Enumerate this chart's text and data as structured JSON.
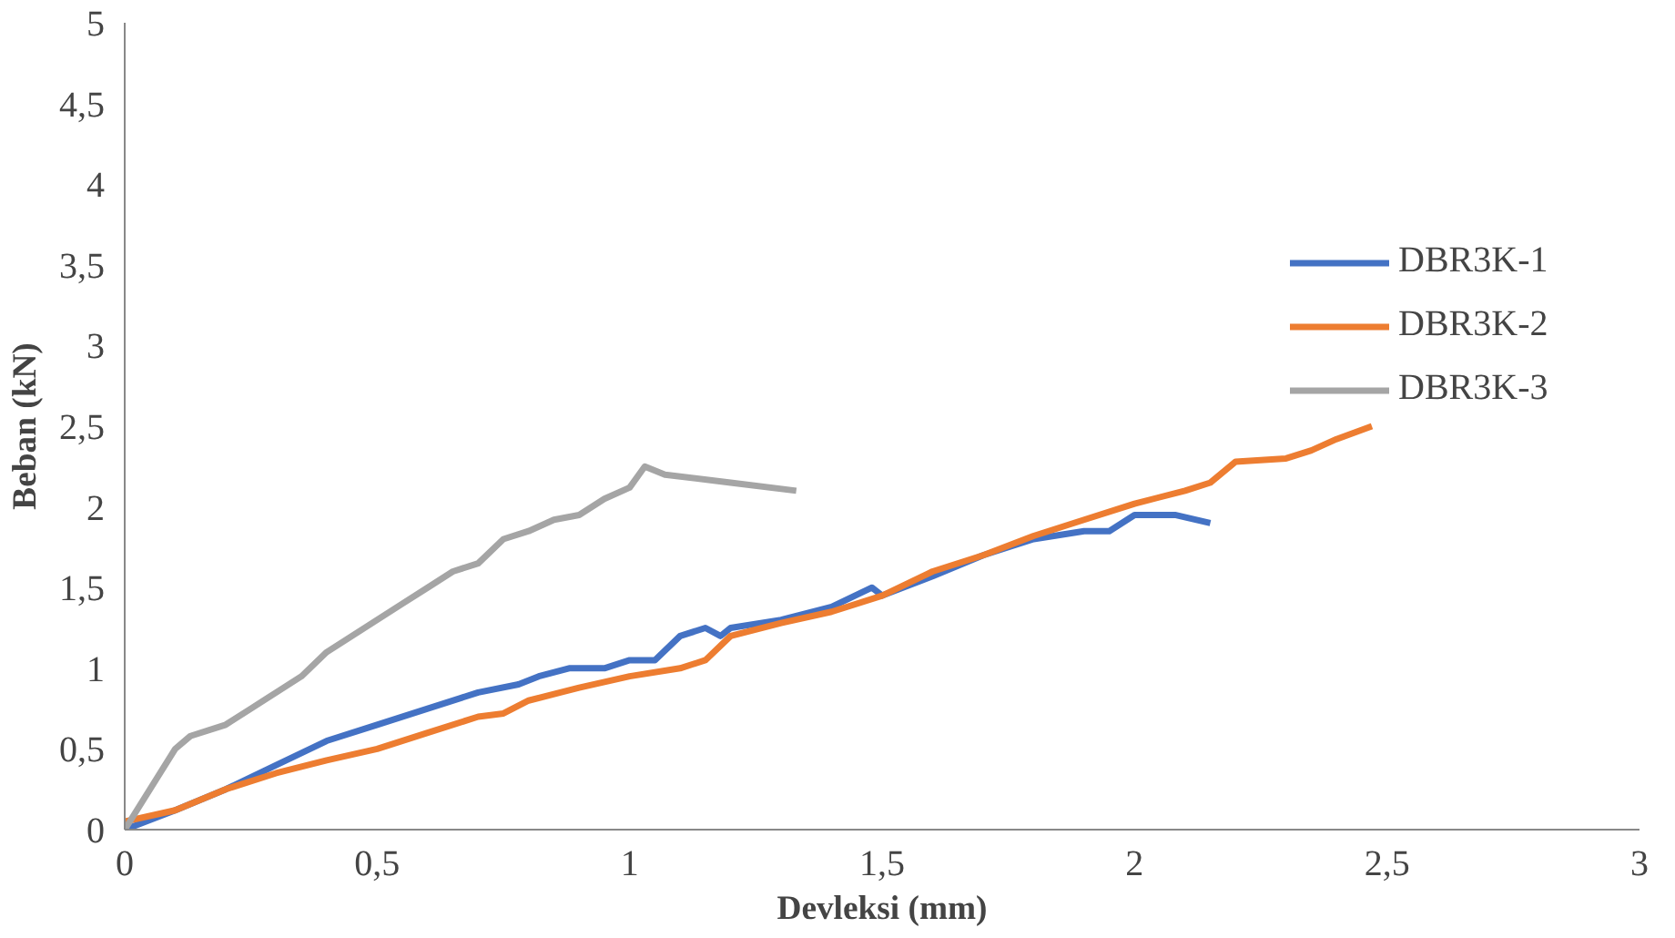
{
  "chart_data": {
    "type": "line",
    "xlabel": "Devleksi (mm)",
    "ylabel": "Beban (kN)",
    "xlim": [
      0,
      3
    ],
    "xticks": [
      0,
      {
        "value": 0.5,
        "label": "0,5"
      },
      1,
      {
        "value": 1.5,
        "label": "1,5"
      },
      2,
      {
        "value": 2.5,
        "label": "2,5"
      },
      3
    ],
    "ylim": [
      0,
      5
    ],
    "yticks": [
      0,
      {
        "value": 0.5,
        "label": "0,5"
      },
      1,
      {
        "value": 1.5,
        "label": "1,5"
      },
      2,
      {
        "value": 2.5,
        "label": "2,5"
      },
      3,
      {
        "value": 3.5,
        "label": "3,5"
      },
      4,
      {
        "value": 4.5,
        "label": "4,5"
      },
      5
    ],
    "grid": false,
    "legend": "right",
    "marker": "none",
    "line_style": "solid",
    "series": [
      {
        "name": "DBR3K-1",
        "color": "#4472c4",
        "x": [
          0,
          0.1,
          0.2,
          0.3,
          0.4,
          0.5,
          0.6,
          0.7,
          0.78,
          0.82,
          0.88,
          0.95,
          1.0,
          1.05,
          1.1,
          1.15,
          1.18,
          1.2,
          1.3,
          1.4,
          1.48,
          1.5,
          1.6,
          1.7,
          1.8,
          1.9,
          1.95,
          2.0,
          2.08,
          2.15
        ],
        "values": [
          0,
          0.12,
          0.25,
          0.4,
          0.55,
          0.65,
          0.75,
          0.85,
          0.9,
          0.95,
          1.0,
          1.0,
          1.05,
          1.05,
          1.2,
          1.25,
          1.2,
          1.25,
          1.3,
          1.38,
          1.5,
          1.45,
          1.57,
          1.7,
          1.8,
          1.85,
          1.85,
          1.95,
          1.95,
          1.9
        ]
      },
      {
        "name": "DBR3K-2",
        "color": "#ed7d31",
        "x": [
          0,
          0.1,
          0.2,
          0.3,
          0.4,
          0.5,
          0.6,
          0.7,
          0.75,
          0.8,
          0.9,
          1.0,
          1.1,
          1.15,
          1.2,
          1.3,
          1.4,
          1.5,
          1.6,
          1.7,
          1.8,
          1.9,
          2.0,
          2.1,
          2.15,
          2.2,
          2.3,
          2.35,
          2.4,
          2.47
        ],
        "values": [
          0.05,
          0.12,
          0.25,
          0.35,
          0.43,
          0.5,
          0.6,
          0.7,
          0.72,
          0.8,
          0.88,
          0.95,
          1.0,
          1.05,
          1.2,
          1.28,
          1.35,
          1.45,
          1.6,
          1.7,
          1.82,
          1.92,
          2.02,
          2.1,
          2.15,
          2.28,
          2.3,
          2.35,
          2.42,
          2.5
        ]
      },
      {
        "name": "DBR3K-3",
        "color": "#a5a5a5",
        "x": [
          0,
          0.1,
          0.13,
          0.2,
          0.25,
          0.3,
          0.35,
          0.4,
          0.45,
          0.5,
          0.55,
          0.6,
          0.65,
          0.7,
          0.75,
          0.8,
          0.85,
          0.9,
          0.95,
          1.0,
          1.03,
          1.07,
          1.2,
          1.33
        ],
        "values": [
          0,
          0.5,
          0.58,
          0.65,
          0.75,
          0.85,
          0.95,
          1.1,
          1.2,
          1.3,
          1.4,
          1.5,
          1.6,
          1.65,
          1.8,
          1.85,
          1.92,
          1.95,
          2.05,
          2.12,
          2.25,
          2.2,
          2.15,
          2.1
        ]
      }
    ]
  }
}
